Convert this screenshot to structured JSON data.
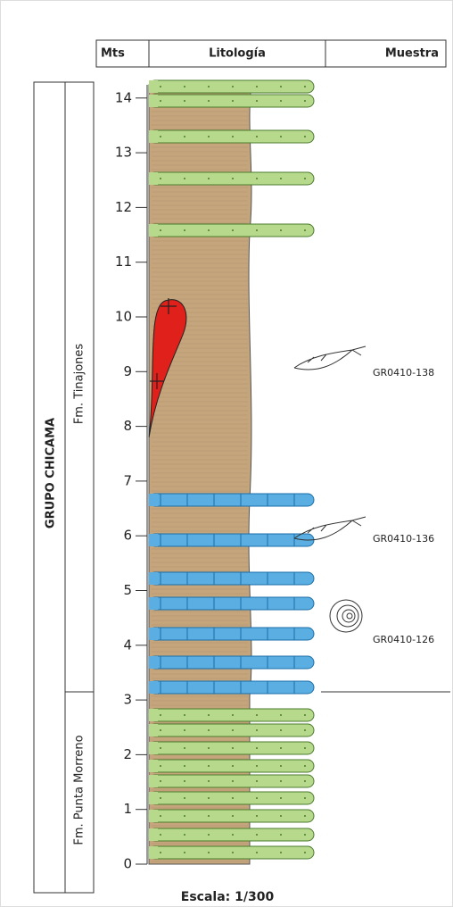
{
  "header": {
    "mts": "Mts",
    "litologia": "Litología",
    "muestra": "Muestra"
  },
  "scale": {
    "ticks": [
      0,
      1,
      2,
      3,
      4,
      5,
      6,
      7,
      8,
      9,
      10,
      11,
      12,
      13,
      14
    ]
  },
  "group": "GRUPO CHICAMA",
  "formations": [
    "Fm. Tinajones",
    "Fm. Punta Morreno"
  ],
  "samples": [
    "GR0410-138",
    "GR0410-136",
    "GR0410-126"
  ],
  "scale_label": "Escala: 1/300"
}
